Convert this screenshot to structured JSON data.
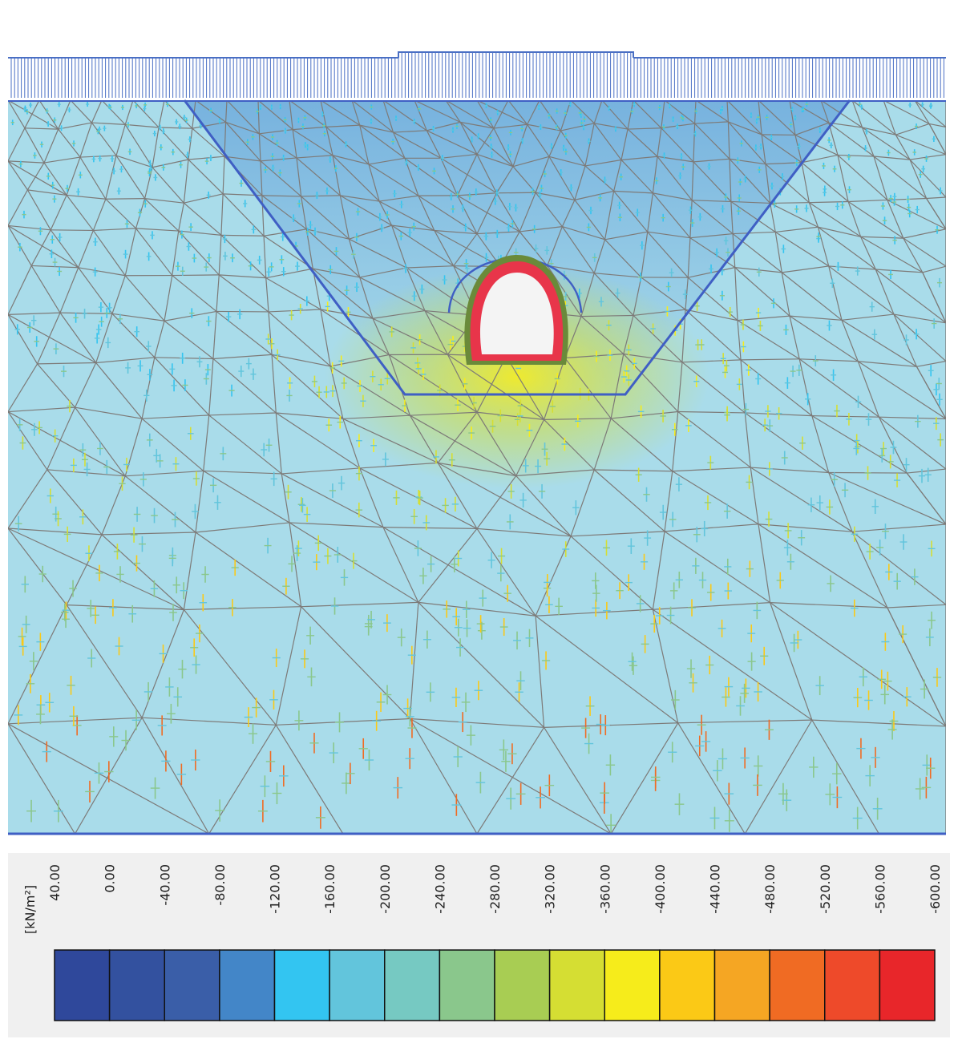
{
  "legend": {
    "unit": "[kN/m²]",
    "tick_labels": [
      "40.00",
      "0.00",
      "-40.00",
      "-80.00",
      "-120.00",
      "-160.00",
      "-200.00",
      "-240.00",
      "-280.00",
      "-320.00",
      "-360.00",
      "-400.00",
      "-440.00",
      "-480.00",
      "-520.00",
      "-560.00",
      "-600.00"
    ],
    "colors": [
      "#2f489b",
      "#33519f",
      "#3a5ea8",
      "#4386c8",
      "#33c5f1",
      "#62c5dc",
      "#76c9c2",
      "#8ac78c",
      "#a8cd53",
      "#d5de33",
      "#f6ec1b",
      "#fbc916",
      "#f5a623",
      "#f06b23",
      "#ee4a2a",
      "#e8262a"
    ]
  },
  "model": {
    "soil_color": "#a9dcea",
    "mesh_color": "#7d7a78",
    "load_color": "#4a6fc4",
    "excavation_outline_color": "#3f5fc4",
    "tunnel_lining_color": "#e8354a",
    "tunnel_shell_color": "#6a8a3a",
    "tunnel_interior_color": "#f4f4f4"
  }
}
